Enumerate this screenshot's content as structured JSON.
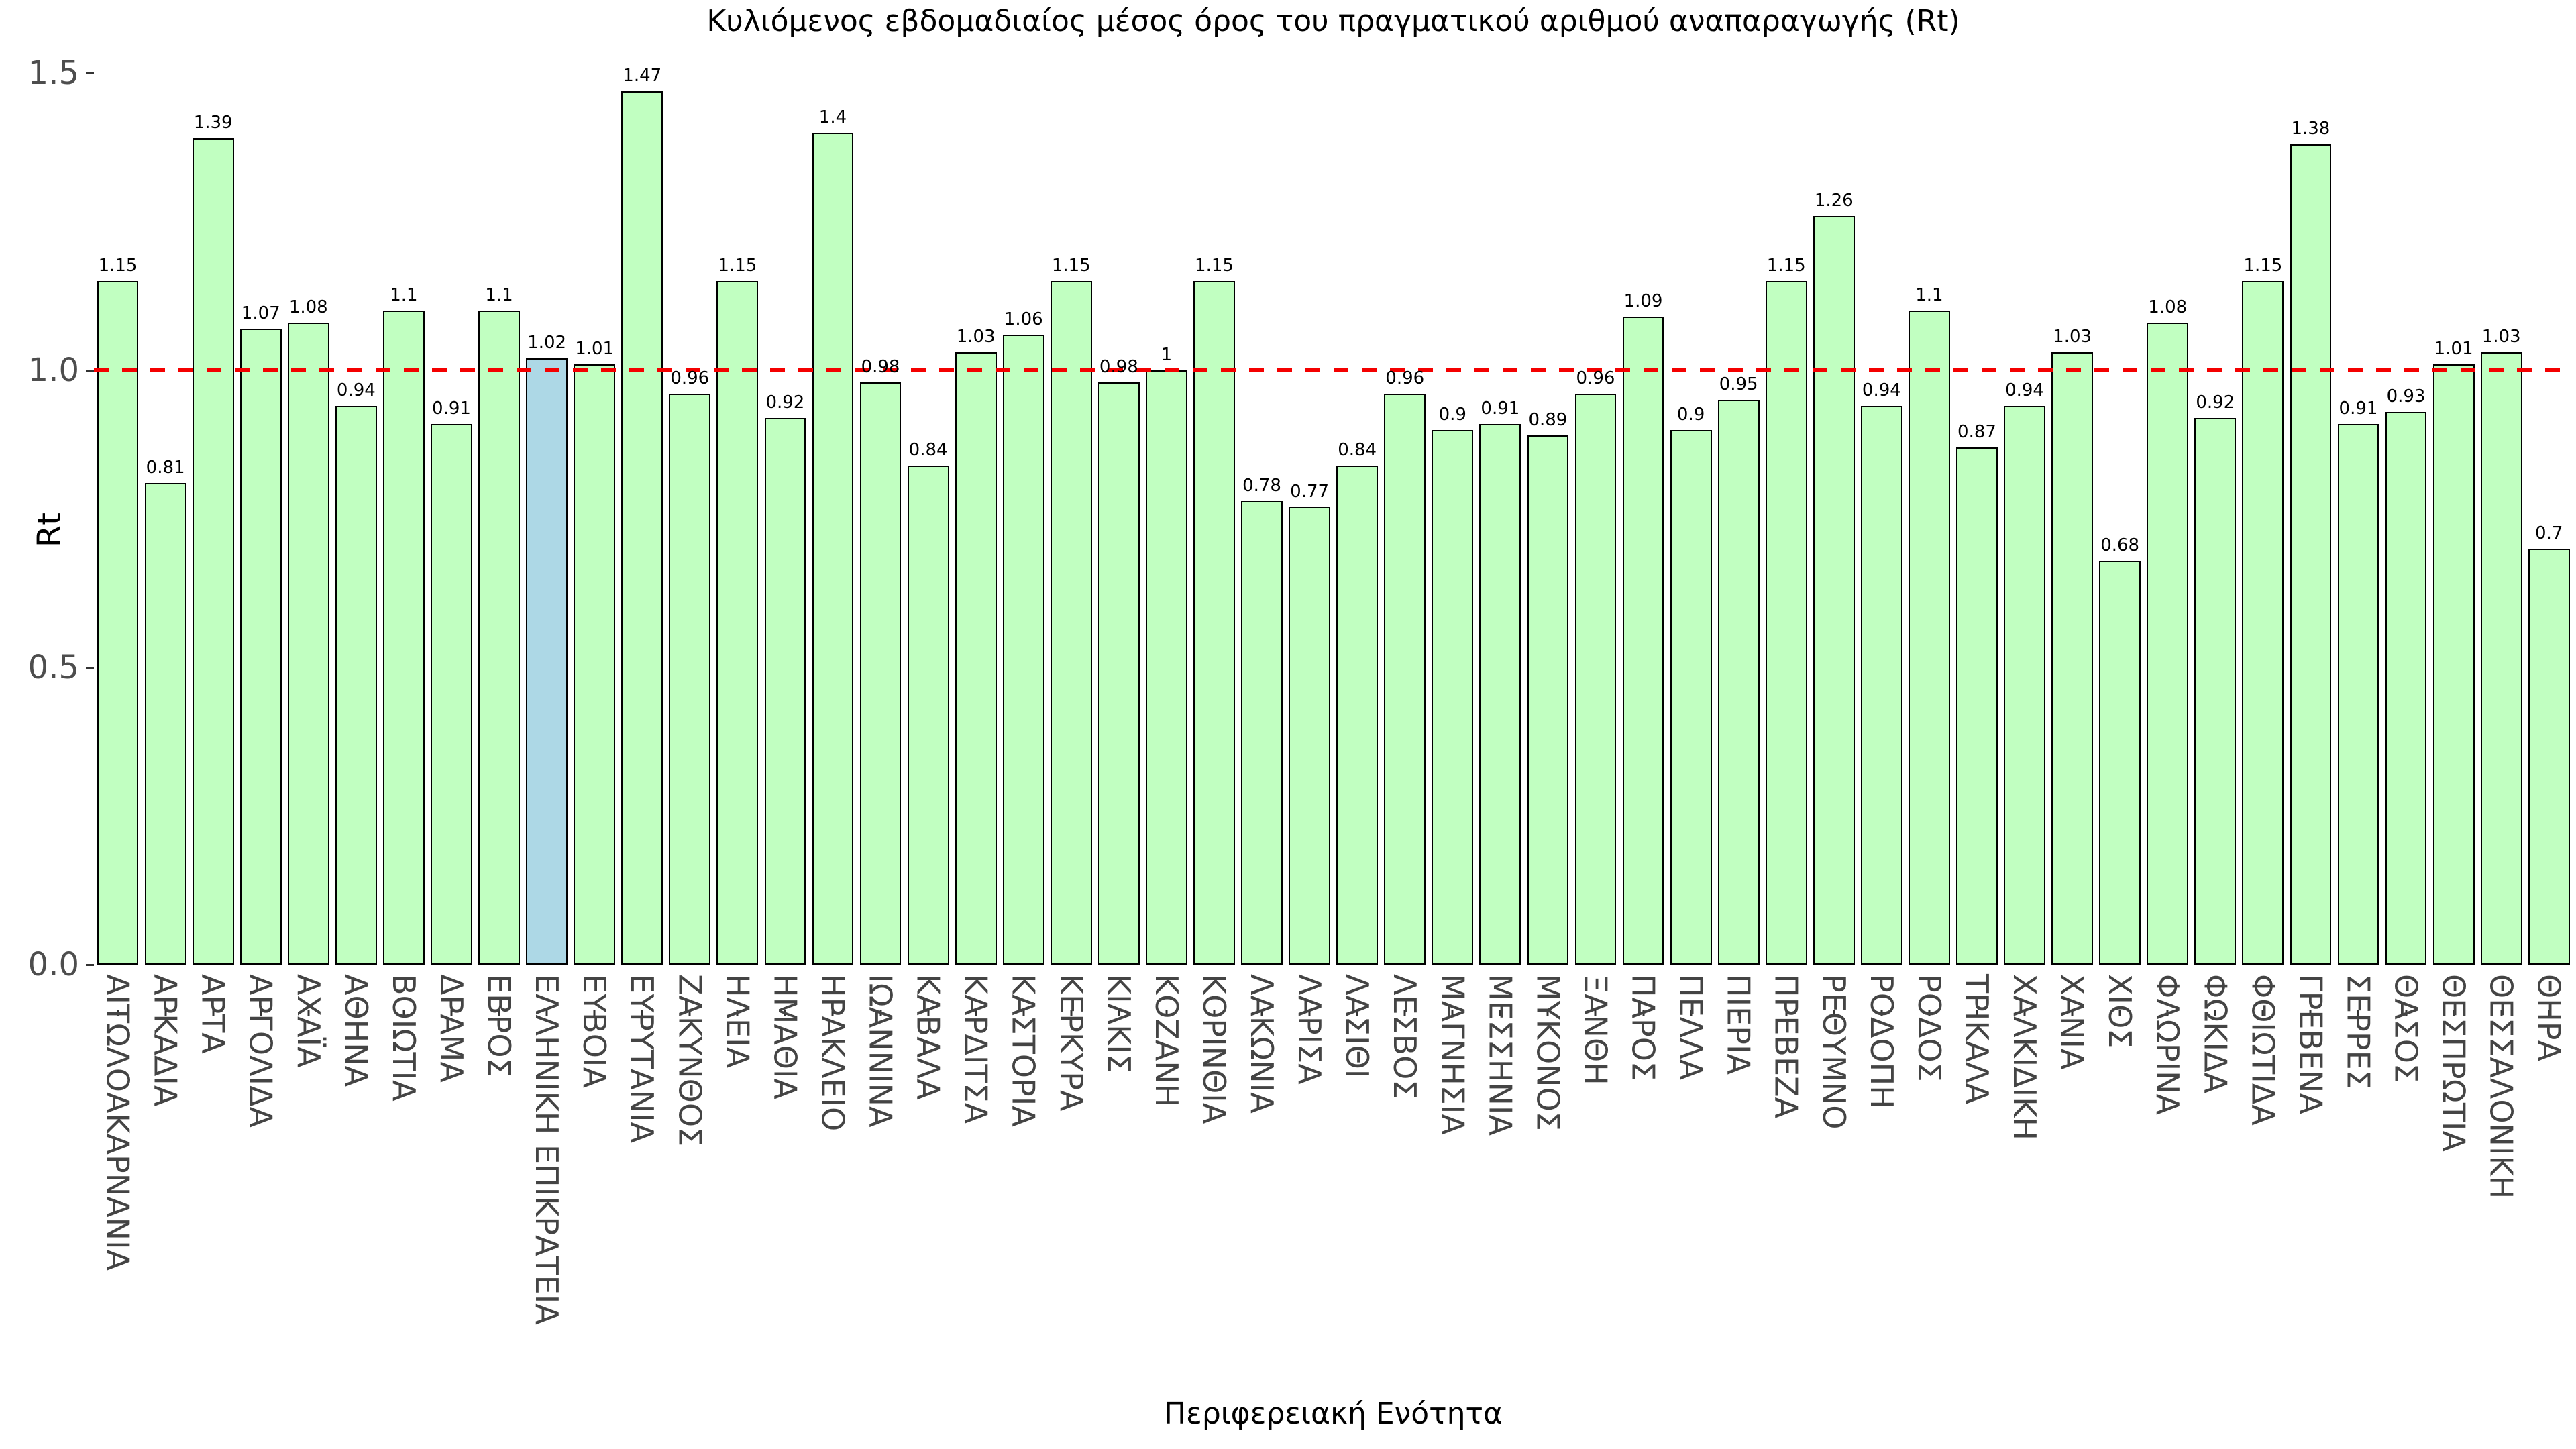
{
  "title": "Κυλιόμενος εβδομαδιαίος μέσος όρος του πραγματικού αριθμού αναπαραγωγής (Rt)",
  "y_axis": {
    "label": "Rt",
    "ticks": {
      "labels": [
        "0.0",
        "0.5",
        "1.0",
        "1.5"
      ],
      "values": [
        0,
        0.5,
        1,
        1.5
      ]
    }
  },
  "x_axis": {
    "label": "Περιφερειακή Ενότητα"
  },
  "reference_line": {
    "value": 1,
    "color": "#F40000",
    "style": "dashed"
  },
  "colors": {
    "bar_fill": "#C1FFC1",
    "highlight_fill": "#ADD8E6",
    "bar_edge": "#000000",
    "axis_text": "#4d4d4d"
  },
  "chart_data": {
    "type": "bar",
    "title": "Κυλιόμενος εβδομαδιαίος μέσος όρος του πραγματικού αριθμού αναπαραγωγής (Rt)",
    "xlabel": "Περιφερειακή Ενότητα",
    "ylabel": "Rt",
    "ylim": [
      -0.0735,
      1.5435
    ],
    "yticks": [
      0,
      0.5,
      1,
      1.5
    ],
    "grid": false,
    "legend": false,
    "reference_line_y": 1,
    "highlight_category": "ΕΛΛΗΝΙΚΗ ΕΠΙΚΡΑΤΕΙΑ",
    "categories": [
      "ΑΙΤΩΛΟΑΚΑΡΝΑΝΙΑ",
      "ΑΡΚΑΔΙΑ",
      "ΑΡΤΑ",
      "ΑΡΓΟΛΙΔΑ",
      "ΑΧΑΪΑ",
      "ΑΘΗΝΑ",
      "ΒΟΙΩΤΙΑ",
      "ΔΡΑΜΑ",
      "ΕΒΡΟΣ",
      "ΕΛΛΗΝΙΚΗ ΕΠΙΚΡΑΤΕΙΑ",
      "ΕΥΒΟΙΑ",
      "ΕΥΡΥΤΑΝΙΑ",
      "ΖΑΚΥΝΘΟΣ",
      "ΗΛΕΙΑ",
      "ΗΜΑΘΙΑ",
      "ΗΡΑΚΛΕΙΟ",
      "ΙΩΑΝΝΙΝΑ",
      "ΚΑΒΑΛΑ",
      "ΚΑΡΔΙΤΣΑ",
      "ΚΑΣΤΟΡΙΑ",
      "ΚΕΡΚΥΡΑ",
      "ΚΙΛΚΙΣ",
      "ΚΟΖΑΝΗ",
      "ΚΟΡΙΝΘΙΑ",
      "ΛΑΚΩΝΙΑ",
      "ΛΑΡΙΣΑ",
      "ΛΑΣΙΘΙ",
      "ΛΕΣΒΟΣ",
      "ΜΑΓΝΗΣΙΑ",
      "ΜΕΣΣΗΝΙΑ",
      "ΜΥΚΟΝΟΣ",
      "ΞΑΝΘΗ",
      "ΠΑΡΟΣ",
      "ΠΕΛΛΑ",
      "ΠΙΕΡΙΑ",
      "ΠΡΕΒΕΖΑ",
      "ΡΕΘΥΜΝΟ",
      "ΡΟΔΟΠΗ",
      "ΡΟΔΟΣ",
      "ΤΡΙΚΑΛΑ",
      "ΧΑΛΚΙΔΙΚΗ",
      "ΧΑΝΙΑ",
      "ΧΙΟΣ",
      "ΦΛΩΡΙΝΑ",
      "ΦΩΚΙΔΑ",
      "ΦΘΙΩΤΙΔΑ",
      "ΓΡΕΒΕΝΑ",
      "ΣΕΡΡΕΣ",
      "ΘΑΣΟΣ",
      "ΘΕΣΠΡΩΤΙΑ",
      "ΘΕΣΣΑΛΟΝΙΚΗ",
      "ΘΗΡΑ"
    ],
    "values": [
      1.15,
      0.81,
      1.39,
      1.07,
      1.08,
      0.94,
      1.1,
      0.91,
      1.1,
      1.02,
      1.01,
      1.47,
      0.96,
      1.15,
      0.92,
      1.4,
      0.98,
      0.84,
      1.03,
      1.06,
      1.15,
      0.98,
      1,
      1.15,
      0.78,
      0.77,
      0.84,
      0.96,
      0.9,
      0.91,
      0.89,
      0.96,
      1.09,
      0.9,
      0.95,
      1.15,
      1.26,
      0.94,
      1.1,
      0.87,
      0.94,
      1.03,
      0.68,
      1.08,
      0.92,
      1.15,
      1.38,
      0.91,
      0.93,
      1.01,
      1.03,
      0.7
    ]
  }
}
